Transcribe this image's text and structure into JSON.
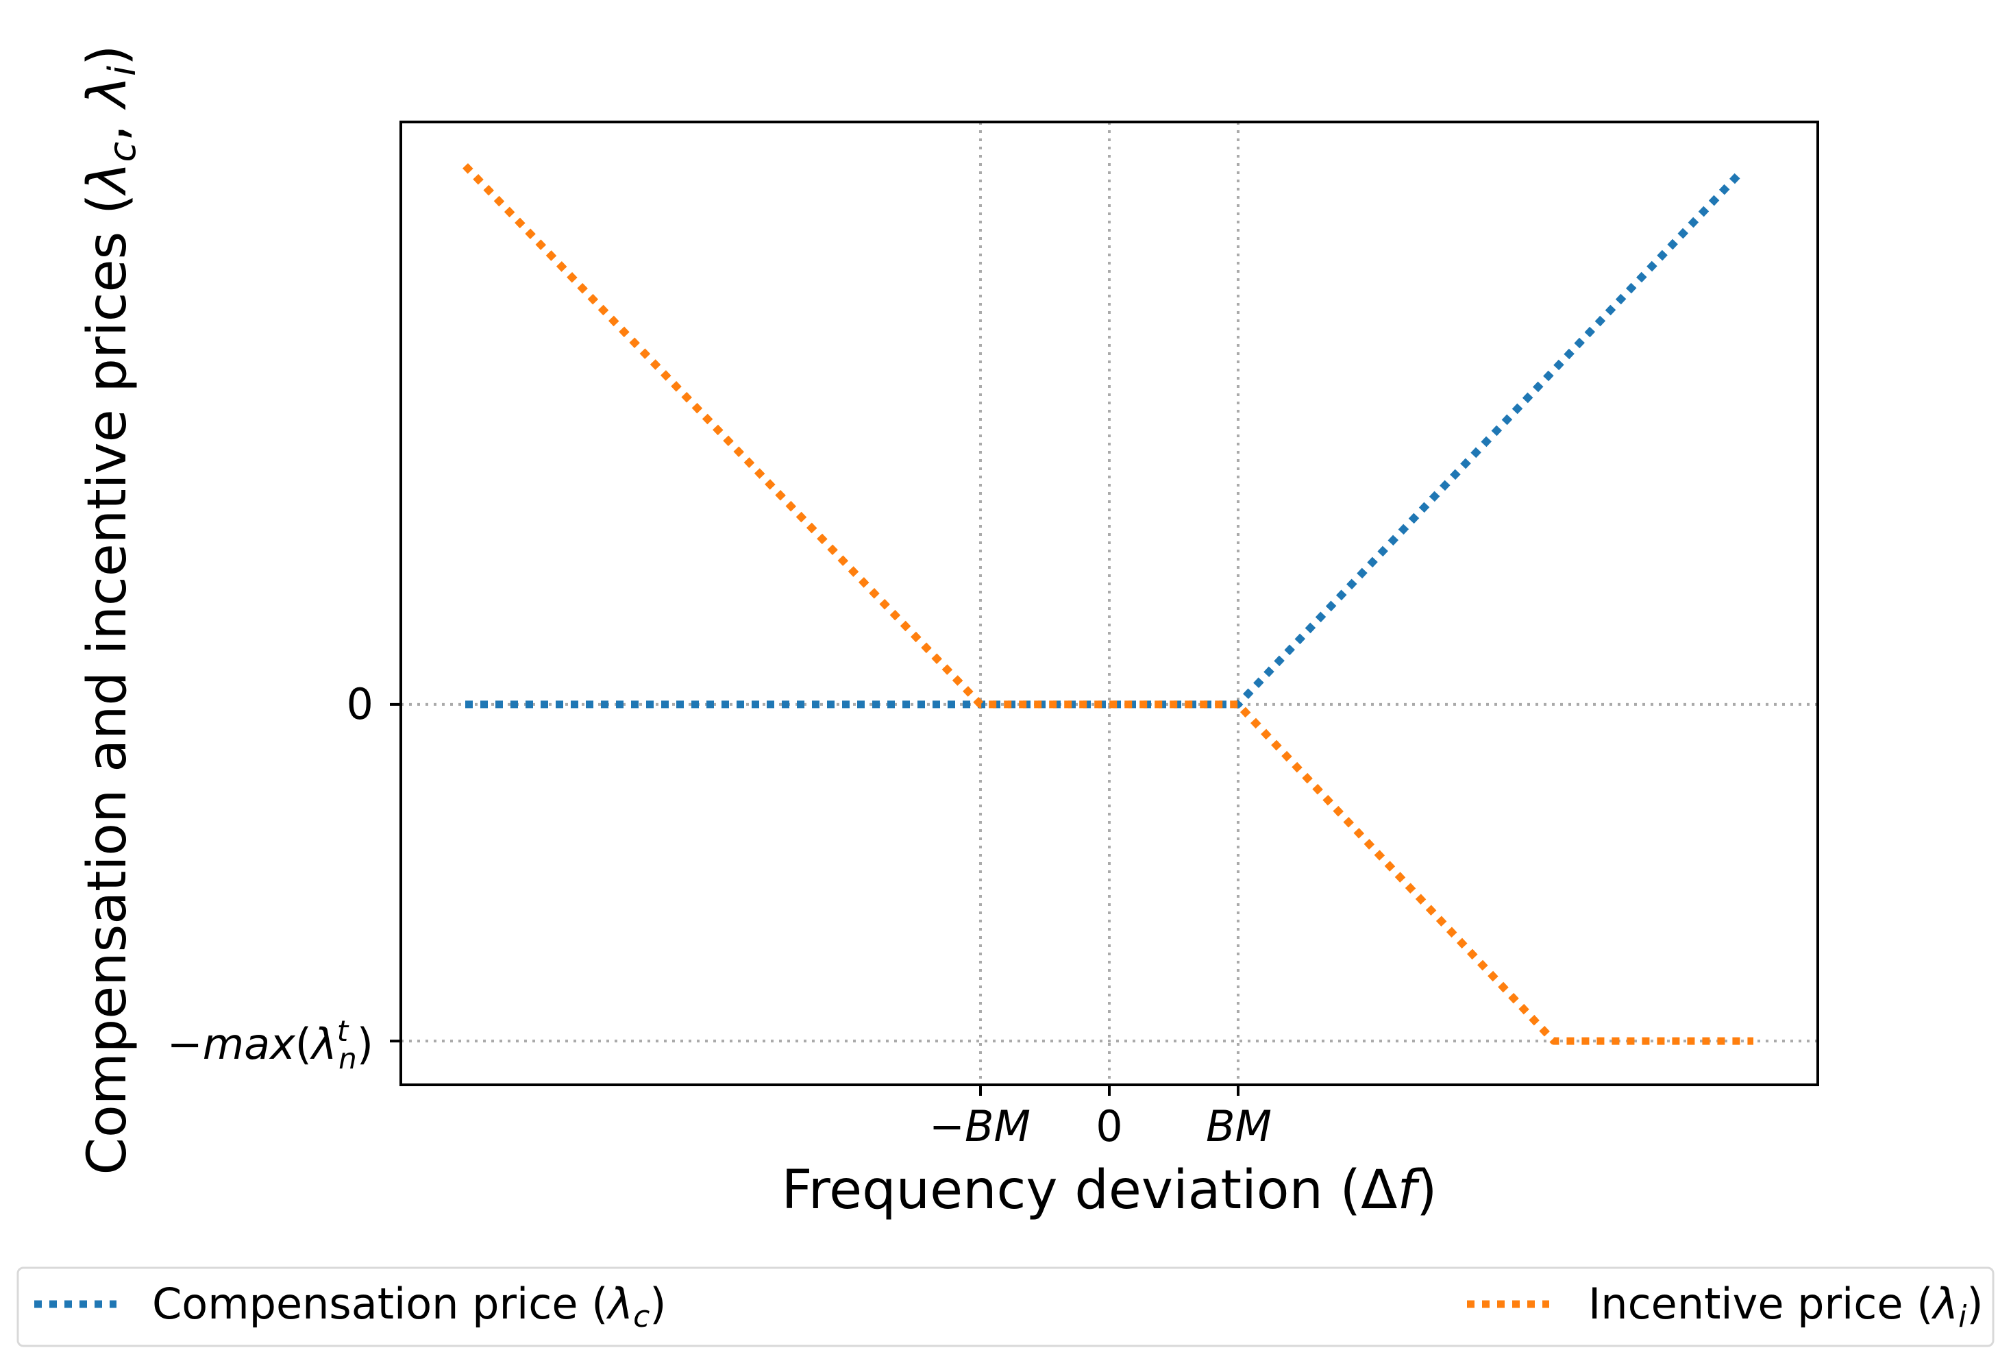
{
  "colors": {
    "compensation": "#1f77b4",
    "incentive": "#ff7f0e",
    "grid": "#aaaaaa",
    "axes": "#000000"
  },
  "chart_data": {
    "type": "line",
    "title": "",
    "xlabel": "Frequency deviation (Δf)",
    "ylabel": "Compensation and incentive prices (λc,λi)",
    "x_range": [
      -5.5,
      5.5
    ],
    "y_range": [
      -1.13,
      1.73
    ],
    "x_ticks": [
      {
        "value": -1,
        "label": "−BM"
      },
      {
        "value": 0,
        "label": "0"
      },
      {
        "value": 1,
        "label": "BM"
      }
    ],
    "y_ticks": [
      {
        "value": 0,
        "label": "0"
      },
      {
        "value": -1,
        "label": "−max(λnt)"
      }
    ],
    "reference_lines": {
      "vertical": [
        -1,
        0,
        1
      ],
      "horizontal": [
        0,
        -1
      ]
    },
    "series": [
      {
        "name": "Compensation price (λc)",
        "style": "dotted",
        "x": [
          -5,
          -1,
          1,
          4.9
        ],
        "y": [
          0,
          0,
          0,
          1.58
        ]
      },
      {
        "name": "Incentive price (λi)",
        "style": "dotted",
        "x": [
          -5,
          -1,
          1,
          3.45,
          5
        ],
        "y": [
          1.6,
          0,
          0,
          -1,
          -1
        ]
      }
    ],
    "legend": {
      "placement": "bottom",
      "entries": [
        "Compensation price (λc)",
        "Incentive price (λi)"
      ]
    }
  }
}
